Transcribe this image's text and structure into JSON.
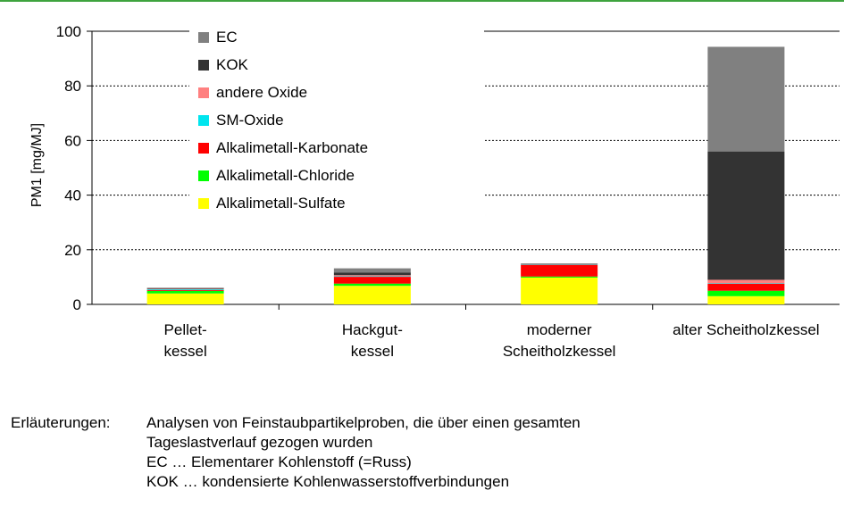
{
  "colors": {
    "top_rule": "#3ea33e",
    "axis": "#000000",
    "grid": "#000000"
  },
  "notes": {
    "heading": "Erläuterungen:",
    "lines": [
      "Analysen von Feinstaubpartikelproben, die über einen gesamten",
      "Tageslastverlauf gezogen wurden",
      "EC … Elementarer Kohlenstoff (=Russ)",
      "KOK … kondensierte Kohlenwasserstoffverbindungen"
    ]
  },
  "chart_data": {
    "type": "bar",
    "stacked": true,
    "ylabel": "PM1 [mg/MJ]",
    "xlabel": "",
    "title": "",
    "ylim": [
      0,
      100
    ],
    "yticks": [
      "0",
      "20",
      "40",
      "60",
      "80",
      "100"
    ],
    "grid": "horizontal dotted",
    "legend_position": "top-left",
    "categories": [
      [
        "Pellet-",
        "kessel"
      ],
      [
        "Hackgut-",
        "kessel"
      ],
      [
        "moderner",
        "Scheitholzkessel"
      ],
      [
        "alter Scheitholzkessel"
      ]
    ],
    "series": [
      {
        "name": "Alkalimetall-Sulfate",
        "color": "#ffff00",
        "values": [
          4.0,
          6.8,
          9.8,
          3.0
        ]
      },
      {
        "name": "Alkalimetall-Chloride",
        "color": "#00ff00",
        "values": [
          0.9,
          0.8,
          0.4,
          2.0
        ]
      },
      {
        "name": "Alkalimetall-Karbonate",
        "color": "#ff0000",
        "values": [
          0.3,
          2.5,
          4.2,
          2.6
        ]
      },
      {
        "name": "SM-Oxide",
        "color": "#00e5ee",
        "values": [
          0.3,
          0.2,
          0.1,
          0.2
        ]
      },
      {
        "name": "andere Oxide",
        "color": "#ff8080",
        "values": [
          0.2,
          0.4,
          0.1,
          1.2
        ]
      },
      {
        "name": "KOK",
        "color": "#333333",
        "values": [
          0.2,
          1.0,
          0.2,
          47.0
        ]
      },
      {
        "name": "EC",
        "color": "#808080",
        "values": [
          0.2,
          1.5,
          0.2,
          38.3
        ]
      }
    ]
  }
}
